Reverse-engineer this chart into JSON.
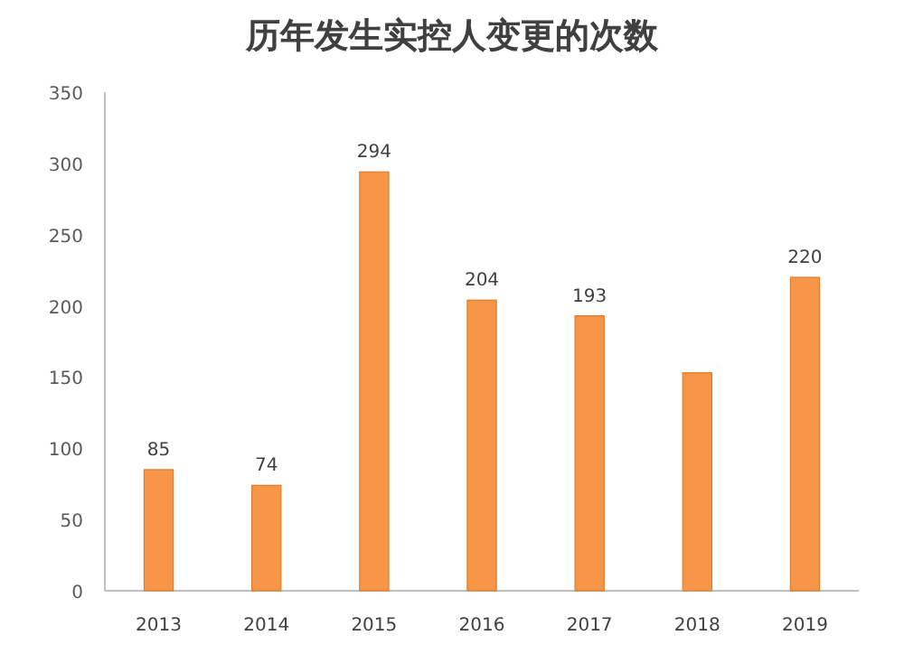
{
  "chart_data": {
    "type": "bar",
    "title": "历年发生实控人变更的次数",
    "categories": [
      "2013",
      "2014",
      "2015",
      "2016",
      "2017",
      "2018",
      "2019"
    ],
    "values": [
      85,
      74,
      294,
      204,
      193,
      153,
      220
    ],
    "value_labels": [
      "85",
      "74",
      "294",
      "204",
      "193",
      null,
      "220"
    ],
    "color": "#f79646",
    "ylim": [
      0,
      350
    ],
    "yticks": [
      0,
      50,
      100,
      150,
      200,
      250,
      300,
      350
    ],
    "grid": false
  }
}
